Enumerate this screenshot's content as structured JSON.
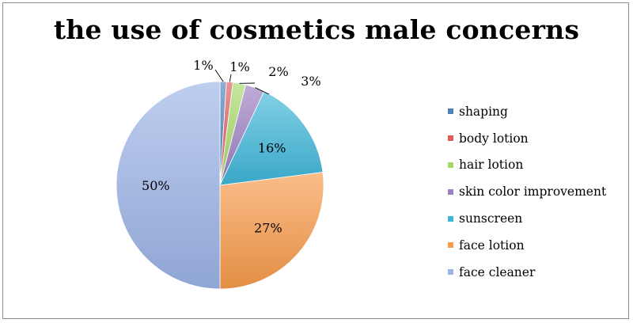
{
  "chart_data": {
    "type": "pie",
    "title": "the use of cosmetics male concerns",
    "categories": [
      "shaping",
      "body lotion",
      "hair lotion",
      "skin color improvement",
      "sunscreen",
      "face lotion",
      "face cleaner"
    ],
    "values": [
      1,
      1,
      2,
      3,
      16,
      27,
      50
    ],
    "labels": [
      "1%",
      "1%",
      "2%",
      "3%",
      "16%",
      "27%",
      "50%"
    ],
    "colors": [
      "#4f81bd",
      "#e05a5a",
      "#a6d96a",
      "#9b7fc2",
      "#3fb6d8",
      "#f79a4a",
      "#9bb3e6"
    ],
    "legend_position": "right",
    "start_angle": "top, clockwise"
  }
}
